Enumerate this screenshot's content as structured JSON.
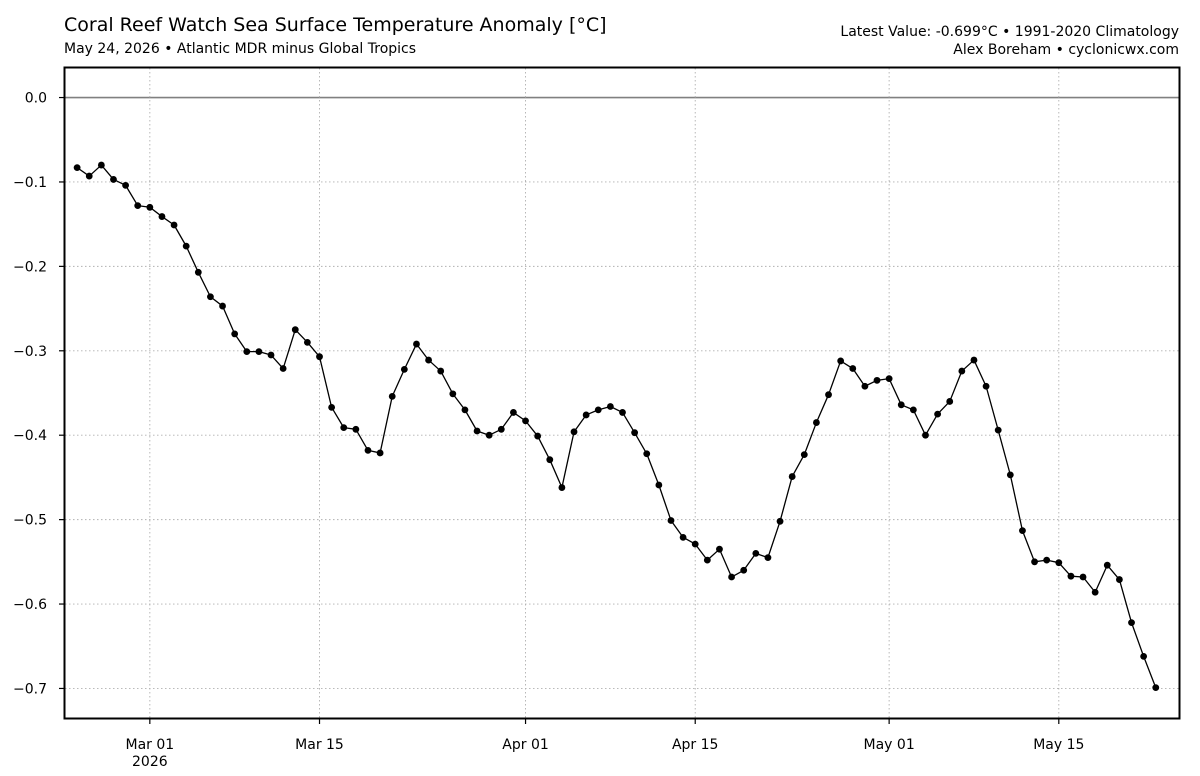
{
  "header": {
    "title": "Coral Reef Watch Sea Surface Temperature Anomaly [°C]",
    "subtitle": "May 24, 2026 • Atlantic MDR minus Global Tropics",
    "info_line1": "Latest Value: -0.699°C • 1991-2020 Climatology",
    "info_line2": "Alex Boreham • cyclonicwx.com"
  },
  "chart_data": {
    "type": "line",
    "title": "Coral Reef Watch Sea Surface Temperature Anomaly [°C]",
    "subtitle": "May 24, 2026 • Atlantic MDR minus Global Tropics",
    "xlabel": "",
    "ylabel": "",
    "x_start": "2026-02-23",
    "x_end": "2026-05-24",
    "xlim": [
      "2026-02-22",
      "2026-05-25"
    ],
    "ylim": [
      -0.735,
      0.035
    ],
    "yticks": [
      0.0,
      -0.1,
      -0.2,
      -0.3,
      -0.4,
      -0.5,
      -0.6,
      -0.7
    ],
    "ytick_labels": [
      "0.0",
      "−0.1",
      "−0.2",
      "−0.3",
      "−0.4",
      "−0.5",
      "−0.6",
      "−0.7"
    ],
    "xticks": [
      {
        "date": "2026-03-01",
        "label": "Mar 01",
        "sublabel": "2026"
      },
      {
        "date": "2026-03-15",
        "label": "Mar 15"
      },
      {
        "date": "2026-04-01",
        "label": "Apr 01"
      },
      {
        "date": "2026-04-15",
        "label": "Apr 15"
      },
      {
        "date": "2026-05-01",
        "label": "May 01"
      },
      {
        "date": "2026-05-15",
        "label": "May 15"
      }
    ],
    "reference_line": 0.0,
    "grid": true,
    "line_color": "#000000",
    "grid_color": "#b0b0b0",
    "zero_line_color": "#808080",
    "series": [
      {
        "values": [
          -0.083,
          -0.093,
          -0.08,
          -0.097,
          -0.104,
          -0.128,
          -0.13,
          -0.141,
          -0.151,
          -0.176,
          -0.207,
          -0.236,
          -0.247,
          -0.28,
          -0.301,
          -0.301,
          -0.305,
          -0.321,
          -0.275,
          -0.29,
          -0.307,
          -0.367,
          -0.391,
          -0.393,
          -0.418,
          -0.421,
          -0.354,
          -0.322,
          -0.292,
          -0.311,
          -0.324,
          -0.351,
          -0.37,
          -0.395,
          -0.4,
          -0.393,
          -0.373,
          -0.383,
          -0.401,
          -0.429,
          -0.462,
          -0.396,
          -0.376,
          -0.37,
          -0.366,
          -0.373,
          -0.397,
          -0.422,
          -0.459,
          -0.501,
          -0.521,
          -0.529,
          -0.548,
          -0.535,
          -0.568,
          -0.56,
          -0.54,
          -0.545,
          -0.502,
          -0.449,
          -0.423,
          -0.385,
          -0.352,
          -0.312,
          -0.321,
          -0.342,
          -0.335,
          -0.333,
          -0.364,
          -0.37,
          -0.4,
          -0.375,
          -0.36,
          -0.324,
          -0.311,
          -0.342,
          -0.394,
          -0.447,
          -0.513,
          -0.55,
          -0.548,
          -0.551,
          -0.567,
          -0.568,
          -0.586,
          -0.554,
          -0.571,
          -0.622,
          -0.662,
          -0.699
        ]
      }
    ]
  }
}
